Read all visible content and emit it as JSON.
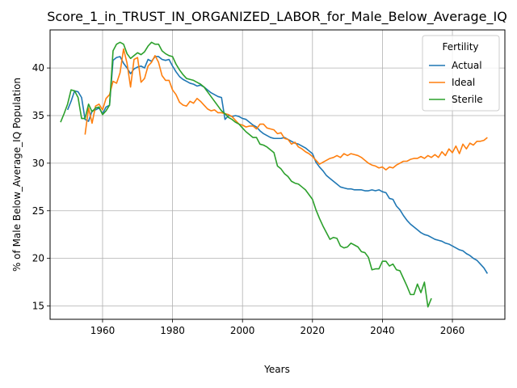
{
  "chart_data": {
    "type": "line",
    "title": "Score_1_in_TRUST_IN_ORGANIZED_LABOR_for_Male_Below_Average_IQ",
    "xlabel": "Years",
    "ylabel": "% of Male Below_Average_IQ Population",
    "xlim": [
      1945,
      2075
    ],
    "ylim": [
      13.6,
      44.0
    ],
    "xticks": [
      1960,
      1980,
      2000,
      2020,
      2040,
      2060
    ],
    "yticks": [
      15,
      20,
      25,
      30,
      35,
      40
    ],
    "grid": true,
    "legend": {
      "title": "Fertility",
      "position": "top-right"
    },
    "series": [
      {
        "name": "Actual",
        "color": "#1f77b4",
        "x": [
          1950,
          1951,
          1952,
          1953,
          1954,
          1955,
          1956,
          1957,
          1958,
          1959,
          1960,
          1961,
          1962,
          1963,
          1964,
          1965,
          1966,
          1967,
          1968,
          1969,
          1970,
          1971,
          1972,
          1973,
          1974,
          1975,
          1976,
          1977,
          1978,
          1979,
          1980,
          1981,
          1982,
          1983,
          1984,
          1985,
          1986,
          1987,
          1988,
          1989,
          1990,
          1991,
          1992,
          1993,
          1994,
          1995,
          1996,
          1997,
          1998,
          1999,
          2000,
          2001,
          2002,
          2003,
          2004,
          2005,
          2006,
          2007,
          2008,
          2009,
          2010,
          2011,
          2012,
          2013,
          2014,
          2015,
          2016,
          2017,
          2018,
          2019,
          2020,
          2021,
          2022,
          2023,
          2024,
          2025,
          2026,
          2027,
          2028,
          2029,
          2030,
          2031,
          2032,
          2033,
          2034,
          2035,
          2036,
          2037,
          2038,
          2039,
          2040,
          2041,
          2042,
          2043,
          2044,
          2045,
          2046,
          2047,
          2048,
          2049,
          2050,
          2051,
          2052,
          2053,
          2054,
          2055,
          2056,
          2057,
          2058,
          2059,
          2060,
          2061,
          2062,
          2063,
          2064,
          2065,
          2066,
          2067,
          2068,
          2069,
          2070
        ],
        "y": [
          35.6,
          36.5,
          37.6,
          37.5,
          36.9,
          34.6,
          34.4,
          35.5,
          35.6,
          35.8,
          35.2,
          35.9,
          36.1,
          40.8,
          41.1,
          41.2,
          40.5,
          40.0,
          39.4,
          39.9,
          40.1,
          40.2,
          40.0,
          40.9,
          40.7,
          41.2,
          41.2,
          40.9,
          40.8,
          40.9,
          40.2,
          39.6,
          39.1,
          38.8,
          38.6,
          38.4,
          38.3,
          38.1,
          38.2,
          38.0,
          37.7,
          37.4,
          37.2,
          37.0,
          36.9,
          34.6,
          35.0,
          34.9,
          35.0,
          34.9,
          34.7,
          34.6,
          34.3,
          34.0,
          33.8,
          33.4,
          33.1,
          32.9,
          32.7,
          32.6,
          32.6,
          32.6,
          32.7,
          32.5,
          32.3,
          32.1,
          32.0,
          31.8,
          31.6,
          31.3,
          31.0,
          30.1,
          29.6,
          29.2,
          28.7,
          28.4,
          28.1,
          27.8,
          27.5,
          27.4,
          27.3,
          27.3,
          27.2,
          27.2,
          27.2,
          27.1,
          27.1,
          27.2,
          27.1,
          27.2,
          27.0,
          26.9,
          26.3,
          26.2,
          25.5,
          25.1,
          24.5,
          24.0,
          23.6,
          23.3,
          23.0,
          22.7,
          22.5,
          22.4,
          22.2,
          22.0,
          21.9,
          21.8,
          21.6,
          21.5,
          21.3,
          21.1,
          20.9,
          20.8,
          20.5,
          20.3,
          20.0,
          19.8,
          19.4,
          19.0,
          18.4
        ]
      },
      {
        "name": "Ideal",
        "color": "#ff7f0e",
        "x": [
          1955,
          1956,
          1957,
          1958,
          1959,
          1960,
          1961,
          1962,
          1963,
          1964,
          1965,
          1966,
          1967,
          1968,
          1969,
          1970,
          1971,
          1972,
          1973,
          1974,
          1975,
          1976,
          1977,
          1978,
          1979,
          1980,
          1981,
          1982,
          1983,
          1984,
          1985,
          1986,
          1987,
          1988,
          1989,
          1990,
          1991,
          1992,
          1993,
          1994,
          1995,
          1996,
          1997,
          1998,
          1999,
          2000,
          2001,
          2002,
          2003,
          2004,
          2005,
          2006,
          2007,
          2008,
          2009,
          2010,
          2011,
          2012,
          2013,
          2014,
          2015,
          2016,
          2017,
          2018,
          2019,
          2020,
          2021,
          2022,
          2023,
          2024,
          2025,
          2026,
          2027,
          2028,
          2029,
          2030,
          2031,
          2032,
          2033,
          2034,
          2035,
          2036,
          2037,
          2038,
          2039,
          2040,
          2041,
          2042,
          2043,
          2044,
          2045,
          2046,
          2047,
          2048,
          2049,
          2050,
          2051,
          2052,
          2053,
          2054,
          2055,
          2056,
          2057,
          2058,
          2059,
          2060,
          2061,
          2062,
          2063,
          2064,
          2065,
          2066,
          2067,
          2068,
          2069,
          2070
        ],
        "y": [
          33.0,
          35.8,
          34.2,
          36.0,
          36.2,
          35.6,
          36.8,
          37.2,
          38.6,
          38.4,
          39.5,
          42.0,
          40.5,
          38.0,
          40.9,
          41.1,
          38.5,
          38.9,
          40.2,
          40.6,
          41.3,
          40.6,
          39.2,
          38.7,
          38.7,
          37.7,
          37.2,
          36.4,
          36.1,
          36.0,
          36.5,
          36.3,
          36.8,
          36.5,
          36.1,
          35.7,
          35.5,
          35.6,
          35.3,
          35.3,
          35.2,
          35.1,
          34.9,
          34.5,
          34.1,
          34.0,
          33.8,
          33.9,
          33.9,
          33.6,
          34.1,
          34.1,
          33.7,
          33.6,
          33.5,
          33.1,
          33.2,
          32.6,
          32.5,
          32.0,
          32.2,
          31.7,
          31.5,
          31.2,
          31.0,
          30.7,
          30.3,
          29.9,
          30.1,
          30.3,
          30.5,
          30.6,
          30.8,
          30.6,
          31.0,
          30.8,
          31.0,
          30.9,
          30.8,
          30.6,
          30.3,
          30.0,
          29.8,
          29.7,
          29.5,
          29.6,
          29.3,
          29.6,
          29.5,
          29.8,
          30.0,
          30.2,
          30.2,
          30.4,
          30.5,
          30.5,
          30.7,
          30.5,
          30.8,
          30.6,
          30.9,
          30.6,
          31.2,
          30.8,
          31.5,
          31.1,
          31.8,
          31.0,
          32.0,
          31.5,
          32.1,
          31.9,
          32.3,
          32.3,
          32.4,
          32.7
        ]
      },
      {
        "name": "Sterile",
        "color": "#2ca02c",
        "x": [
          1948,
          1949,
          1950,
          1951,
          1952,
          1953,
          1954,
          1955,
          1956,
          1957,
          1958,
          1959,
          1960,
          1961,
          1962,
          1963,
          1964,
          1965,
          1966,
          1967,
          1968,
          1969,
          1970,
          1971,
          1972,
          1973,
          1974,
          1975,
          1976,
          1977,
          1978,
          1979,
          1980,
          1981,
          1982,
          1983,
          1984,
          1985,
          1986,
          1987,
          1988,
          1989,
          1990,
          1991,
          1992,
          1993,
          1994,
          1995,
          1996,
          1997,
          1998,
          1999,
          2000,
          2001,
          2002,
          2003,
          2004,
          2005,
          2006,
          2007,
          2008,
          2009,
          2010,
          2011,
          2012,
          2013,
          2014,
          2015,
          2016,
          2017,
          2018,
          2019,
          2020,
          2021,
          2022,
          2023,
          2024,
          2025,
          2026,
          2027,
          2028,
          2029,
          2030,
          2031,
          2032,
          2033,
          2034,
          2035,
          2036,
          2037,
          2038,
          2039,
          2040,
          2041,
          2042,
          2043,
          2044,
          2045,
          2046,
          2047,
          2048,
          2049,
          2050,
          2051,
          2052,
          2053,
          2054
        ],
        "y": [
          34.3,
          35.2,
          36.2,
          37.7,
          37.6,
          36.9,
          34.7,
          34.7,
          36.2,
          35.4,
          35.8,
          35.9,
          35.1,
          35.5,
          36.1,
          41.8,
          42.5,
          42.7,
          42.5,
          41.5,
          41.0,
          41.3,
          41.6,
          41.4,
          41.7,
          42.3,
          42.7,
          42.5,
          42.5,
          41.8,
          41.5,
          41.3,
          41.2,
          40.4,
          39.8,
          39.3,
          38.9,
          38.8,
          38.7,
          38.5,
          38.3,
          38.0,
          37.5,
          37.0,
          36.5,
          36.0,
          35.5,
          35.2,
          34.8,
          34.6,
          34.3,
          34.1,
          33.7,
          33.3,
          33.0,
          32.7,
          32.7,
          32.0,
          31.9,
          31.7,
          31.4,
          31.1,
          29.7,
          29.4,
          28.9,
          28.6,
          28.1,
          27.9,
          27.8,
          27.5,
          27.2,
          26.7,
          26.2,
          25.1,
          24.2,
          23.4,
          22.7,
          22.0,
          22.2,
          22.1,
          21.3,
          21.1,
          21.2,
          21.6,
          21.4,
          21.2,
          20.7,
          20.6,
          20.1,
          18.8,
          18.9,
          18.9,
          19.7,
          19.7,
          19.2,
          19.4,
          18.8,
          18.7,
          17.9,
          17.1,
          16.2,
          16.2,
          17.3,
          16.4,
          17.5,
          14.9,
          15.8
        ]
      }
    ]
  }
}
